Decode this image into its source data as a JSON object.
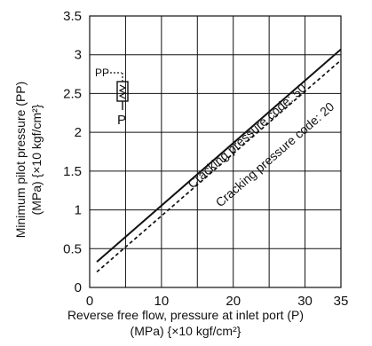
{
  "chart_data": {
    "type": "line",
    "xlabel_lines": [
      "Reverse free flow, pressure at inlet port (P)",
      "(MPa) {×10 kgf/cm²}"
    ],
    "ylabel_lines": [
      "Minimum pilot pressure (PP)",
      "(MPa) {×10 kgf/cm²}"
    ],
    "xlim": [
      0,
      35
    ],
    "ylim": [
      0,
      3.5
    ],
    "x_ticks": [
      {
        "value": 0,
        "label": "0"
      },
      {
        "value": 10,
        "label": "10"
      },
      {
        "value": 20,
        "label": "20"
      },
      {
        "value": 30,
        "label": "30"
      },
      {
        "value": 35,
        "label": "35"
      }
    ],
    "y_ticks": [
      {
        "value": 0,
        "label": "0"
      },
      {
        "value": 0.5,
        "label": "0.5"
      },
      {
        "value": 1,
        "label": "1"
      },
      {
        "value": 1.5,
        "label": "1.5"
      },
      {
        "value": 2,
        "label": "2"
      },
      {
        "value": 2.5,
        "label": "2.5"
      },
      {
        "value": 3,
        "label": "3"
      },
      {
        "value": 3.5,
        "label": "3.5"
      }
    ],
    "grid": true,
    "series": [
      {
        "name": "Cracking pressure code: 50",
        "style": "solid",
        "points": [
          [
            1,
            0.33
          ],
          [
            35,
            3.07
          ]
        ]
      },
      {
        "name": "Cracking pressure code: 20",
        "style": "dashed",
        "points": [
          [
            1,
            0.2
          ],
          [
            35,
            2.93
          ]
        ]
      }
    ],
    "symbol_labels": {
      "pp": "PP",
      "p": "P"
    },
    "colors": {
      "line": "#111111",
      "grid": "#111111",
      "background": "#ffffff"
    }
  }
}
